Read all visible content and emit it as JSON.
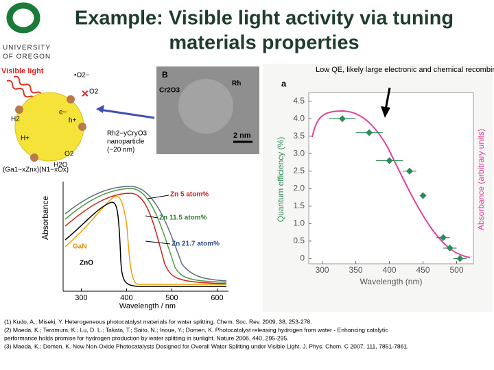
{
  "header": {
    "title_line1": "Example: Visible light activity via tuning",
    "title_line2": "materials properties",
    "logo_line1": "UNIVERSITY",
    "logo_line2": "OF OREGON"
  },
  "scheme": {
    "visible_light": "Visible light",
    "superoxide": "•O2−",
    "oxygen_top": "O2",
    "electron": "e−",
    "hole": "h+",
    "hydrogen": "H2",
    "proton": "H+",
    "oxygen_bottom": "O2",
    "water": "H2O",
    "nanoparticle_line1": "Rh2−yCryO3",
    "nanoparticle_line2": "nanoparticle",
    "nanoparticle_line3": "(~20 nm)",
    "material": "(Ga1−xZnx)(N1−xOx)"
  },
  "tem": {
    "panel": "B",
    "shell": "Cr2O3",
    "core": "Rh",
    "scale": "2 nm"
  },
  "absorbance_chart": {
    "type": "line",
    "ylabel": "Absorbance",
    "xlabel": "Wavelength / nm",
    "xlim": [
      260,
      625
    ],
    "xticks": [
      300,
      400,
      500,
      600
    ],
    "curve_labels": [
      "Zn 5 atom%",
      "Zn 11.5 atom%",
      "Zn 21.7 atom%",
      "GaN",
      "ZnO"
    ]
  },
  "qe_chart": {
    "type": "scatter",
    "panel": "a",
    "xlabel": "Wavelength (nm)",
    "ylabel": "Quantum efficiency (%)",
    "y2label": "Absorbance (arbitrary units)",
    "x": [
      330,
      370,
      400,
      430,
      450,
      480,
      490,
      505
    ],
    "values": [
      4.0,
      3.6,
      2.8,
      2.5,
      1.8,
      0.6,
      0.3,
      0.0
    ],
    "x_errors": [
      20,
      20,
      20,
      10,
      5,
      10,
      10,
      10
    ],
    "color": "#2e8b57",
    "line_color": "#e0409a",
    "xlim": [
      280,
      525
    ],
    "ylim": [
      -0.15,
      4.75
    ],
    "xticks": [
      300,
      350,
      400,
      450,
      500
    ],
    "yticks": [
      0,
      0.5,
      {
        "value": 1,
        "label": "1.0"
      },
      1.5,
      {
        "value": 2,
        "label": "2.0"
      },
      2.5,
      {
        "value": 3,
        "label": "3.0"
      },
      3.5,
      {
        "value": 4,
        "label": "4.0"
      },
      4.5
    ]
  },
  "annotation": "Low QE, likely large electronic and chemical recombination",
  "references": [
    "(1) Kudo, A.; Miseki, Y. Heterogeneous photocatalyst materials for water splitting. Chem. Soc. Rev. 2009, 38, 253-278.",
    "(2) Maeda, K.; Teramura, K.; Lu, D. L.; Takata, T.; Saito, N.; Inoue, Y.; Domen, K. Photocatalyst releasing hydrogen from water - Enhancing catalytic",
    "performance holds promise for hydrogen production by water splitting in sunlight. Nature 2006, 440, 295-295.",
    "(3) Maeda, K.; Domen, K. New Non-Oxide Photocatalysts Designed for Overall Water Splitting under Visible Light. J. Phys. Chem. C 2007, 111, 7851-7861."
  ]
}
